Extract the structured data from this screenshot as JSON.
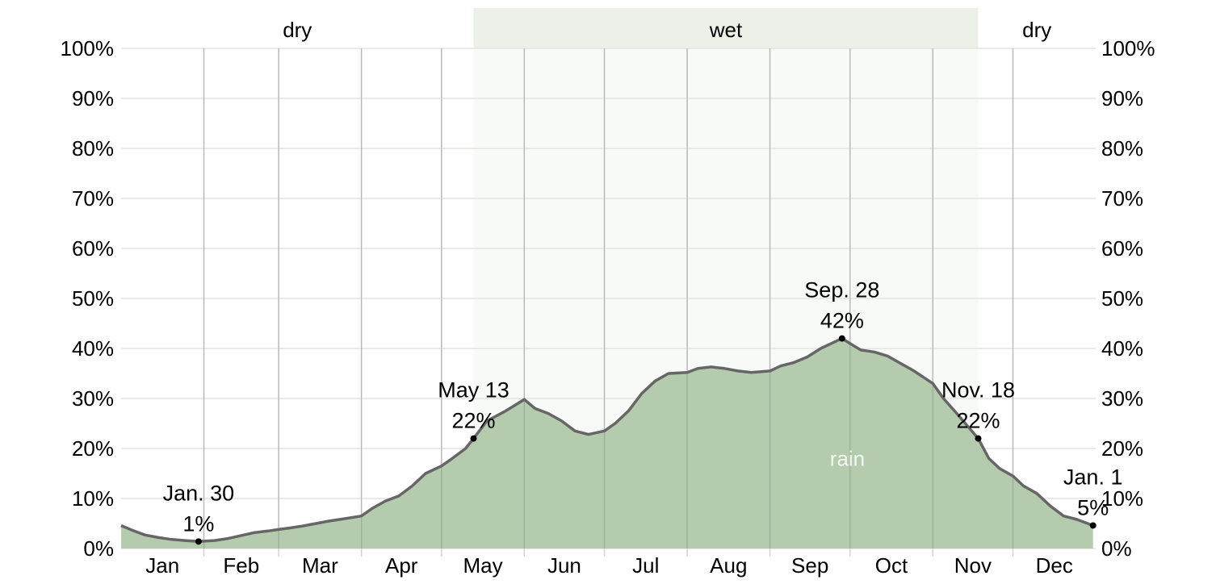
{
  "chart_data": {
    "type": "area",
    "title": "",
    "xlabel": "",
    "ylabel": "",
    "ylim": [
      0,
      100
    ],
    "y_ticks": [
      "0%",
      "10%",
      "20%",
      "30%",
      "40%",
      "50%",
      "60%",
      "70%",
      "80%",
      "90%",
      "100%"
    ],
    "x_ticks": [
      "Jan",
      "Feb",
      "Mar",
      "Apr",
      "May",
      "Jun",
      "Jul",
      "Aug",
      "Sep",
      "Oct",
      "Nov",
      "Dec"
    ],
    "grid": true,
    "series": [
      {
        "name": "rain",
        "color": "#b4cbae",
        "line_color": "#666666",
        "points": [
          [
            "Jan 1",
            4.6
          ],
          [
            "Jan 5",
            3.7
          ],
          [
            "Jan 10",
            2.7
          ],
          [
            "Jan 15",
            2.2
          ],
          [
            "Jan 20",
            1.8
          ],
          [
            "Jan 25",
            1.6
          ],
          [
            "Jan 30",
            1.4
          ],
          [
            "Feb 5",
            1.6
          ],
          [
            "Feb 10",
            2.0
          ],
          [
            "Feb 15",
            2.6
          ],
          [
            "Feb 20",
            3.2
          ],
          [
            "Feb 25",
            3.5
          ],
          [
            "Mar 1",
            3.8
          ],
          [
            "Mar 5",
            4.1
          ],
          [
            "Mar 10",
            4.5
          ],
          [
            "Mar 15",
            5.0
          ],
          [
            "Mar 20",
            5.5
          ],
          [
            "Mar 25",
            5.9
          ],
          [
            "Apr 1",
            6.5
          ],
          [
            "Apr 5",
            8.0
          ],
          [
            "Apr 10",
            9.5
          ],
          [
            "Apr 15",
            10.5
          ],
          [
            "Apr 20",
            12.5
          ],
          [
            "Apr 25",
            15.0
          ],
          [
            "May 1",
            16.5
          ],
          [
            "May 5",
            18.0
          ],
          [
            "May 10",
            20.0
          ],
          [
            "May 13",
            22.0
          ],
          [
            "May 18",
            25.5
          ],
          [
            "May 25",
            27.5
          ],
          [
            "Jun 1",
            29.8
          ],
          [
            "Jun 5",
            28.0
          ],
          [
            "Jun 10",
            27.0
          ],
          [
            "Jun 15",
            25.5
          ],
          [
            "Jun 20",
            23.5
          ],
          [
            "Jun 25",
            22.8
          ],
          [
            "Jul 1",
            23.5
          ],
          [
            "Jul 5",
            25.0
          ],
          [
            "Jul 10",
            27.5
          ],
          [
            "Jul 15",
            31.0
          ],
          [
            "Jul 20",
            33.5
          ],
          [
            "Jul 25",
            35.0
          ],
          [
            "Aug 1",
            35.2
          ],
          [
            "Aug 5",
            36.0
          ],
          [
            "Aug 10",
            36.3
          ],
          [
            "Aug 15",
            36.0
          ],
          [
            "Aug 20",
            35.5
          ],
          [
            "Aug 25",
            35.2
          ],
          [
            "Sep 1",
            35.5
          ],
          [
            "Sep 5",
            36.5
          ],
          [
            "Sep 10",
            37.2
          ],
          [
            "Sep 15",
            38.3
          ],
          [
            "Sep 20",
            40.0
          ],
          [
            "Sep 28",
            42.0
          ],
          [
            "Oct 1",
            41.0
          ],
          [
            "Oct 5",
            39.7
          ],
          [
            "Oct 10",
            39.3
          ],
          [
            "Oct 15",
            38.5
          ],
          [
            "Oct 20",
            37.0
          ],
          [
            "Oct 25",
            35.5
          ],
          [
            "Nov 1",
            33.0
          ],
          [
            "Nov 5",
            30.0
          ],
          [
            "Nov 10",
            27.0
          ],
          [
            "Nov 18",
            22.0
          ],
          [
            "Nov 22",
            18.0
          ],
          [
            "Nov 26",
            16.0
          ],
          [
            "Dec 1",
            14.5
          ],
          [
            "Dec 5",
            12.5
          ],
          [
            "Dec 10",
            11.0
          ],
          [
            "Dec 15",
            8.5
          ],
          [
            "Dec 20",
            6.5
          ],
          [
            "Dec 25",
            5.8
          ],
          [
            "Dec 31",
            4.6
          ]
        ]
      }
    ],
    "seasons": [
      {
        "label": "dry",
        "start": "Jan 1",
        "end": "May 13",
        "shaded": false
      },
      {
        "label": "wet",
        "start": "May 13",
        "end": "Nov 18",
        "shaded": true,
        "color": "#ebf0e9"
      },
      {
        "label": "dry",
        "start": "Nov 18",
        "end": "Dec 31",
        "shaded": false
      }
    ],
    "annotations": [
      {
        "date": "Jan 30",
        "date_label": "Jan. 30",
        "value": 1.4,
        "value_label": "1%"
      },
      {
        "date": "May 13",
        "date_label": "May 13",
        "value": 22.0,
        "value_label": "22%"
      },
      {
        "date": "Sep 28",
        "date_label": "Sep. 28",
        "value": 42.0,
        "value_label": "42%"
      },
      {
        "date": "Nov 18",
        "date_label": "Nov. 18",
        "value": 22.0,
        "value_label": "22%"
      },
      {
        "date": "Dec 31",
        "date_label": "Jan. 1",
        "value": 4.6,
        "value_label": "5%"
      }
    ],
    "series_label": {
      "text": "rain",
      "date": "Sep 30",
      "value": 18.5
    }
  }
}
